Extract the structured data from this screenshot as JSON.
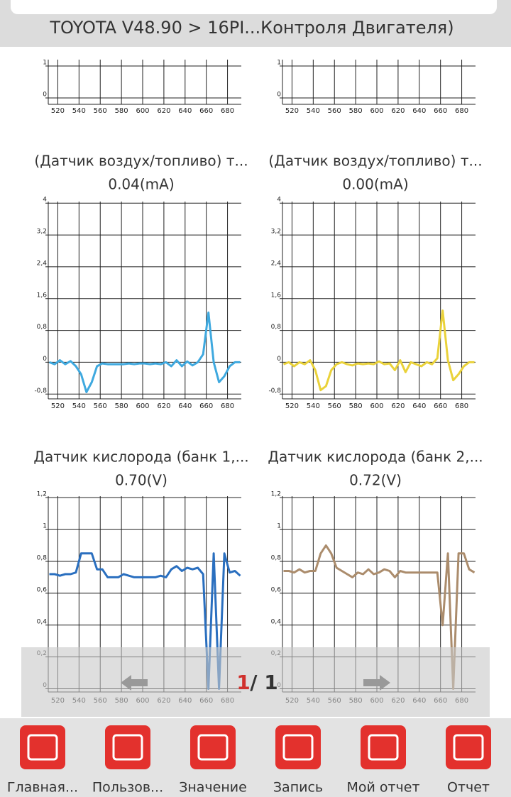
{
  "header": {
    "title": "TOYOTA V48.90 > 16PI...Контроля Двигателя)"
  },
  "charts": [
    {
      "type": "line",
      "x": [],
      "series": [],
      "xlim": [
        511,
        693
      ],
      "ylim": [
        -0.2,
        1.2
      ],
      "xticks": [
        520,
        540,
        560,
        580,
        600,
        620,
        640,
        660,
        680
      ],
      "yticks": [
        0,
        1
      ]
    },
    {
      "type": "line",
      "x": [],
      "series": [],
      "xlim": [
        511,
        693
      ],
      "ylim": [
        -0.2,
        1.2
      ],
      "xticks": [
        520,
        540,
        560,
        580,
        600,
        620,
        640,
        660,
        680
      ],
      "yticks": [
        0,
        1
      ]
    },
    {
      "type": "line",
      "title": "(Датчик воздух/топливо) т...",
      "value_text": "0.04(mA)",
      "x": [
        512,
        517,
        522,
        527,
        532,
        537,
        542,
        547,
        552,
        557,
        562,
        567,
        572,
        577,
        582,
        587,
        592,
        597,
        602,
        607,
        612,
        617,
        622,
        627,
        632,
        637,
        642,
        647,
        652,
        657,
        662,
        667,
        672,
        677,
        682,
        687,
        692
      ],
      "series": [
        {
          "color": "#3fa9df",
          "values": [
            0,
            -0.05,
            0.05,
            -0.05,
            0.03,
            -0.1,
            -0.3,
            -0.75,
            -0.5,
            -0.1,
            -0.03,
            -0.05,
            -0.05,
            -0.05,
            -0.05,
            -0.03,
            -0.05,
            -0.03,
            -0.03,
            -0.05,
            -0.03,
            -0.05,
            0,
            -0.1,
            0.05,
            -0.1,
            0.02,
            -0.08,
            0,
            0.2,
            1.25,
            0,
            -0.5,
            -0.35,
            -0.1,
            0,
            0
          ]
        }
      ],
      "xlim": [
        511,
        693
      ],
      "ylim": [
        -0.92,
        4.04
      ],
      "xticks": [
        520,
        540,
        560,
        580,
        600,
        620,
        640,
        660,
        680
      ],
      "yticks": [
        {
          "value": -0.8,
          "label": "-0,8"
        },
        0,
        {
          "value": 0.8,
          "label": "0,8"
        },
        {
          "value": 1.6,
          "label": "1,6"
        },
        {
          "value": 2.4,
          "label": "2,4"
        },
        {
          "value": 3.2,
          "label": "3,2"
        },
        4
      ]
    },
    {
      "type": "line",
      "title": "(Датчик воздух/топливо) т...",
      "value_text": "0.00(mA)",
      "x": [
        512,
        517,
        522,
        527,
        532,
        537,
        542,
        547,
        552,
        557,
        562,
        567,
        572,
        577,
        582,
        587,
        592,
        597,
        602,
        607,
        612,
        617,
        622,
        627,
        632,
        637,
        642,
        647,
        652,
        657,
        662,
        667,
        672,
        677,
        682,
        687,
        692
      ],
      "series": [
        {
          "color": "#ead23a",
          "values": [
            -0.05,
            0,
            -0.1,
            0,
            -0.05,
            0.05,
            -0.2,
            -0.7,
            -0.6,
            -0.2,
            -0.05,
            0,
            -0.05,
            -0.08,
            -0.03,
            -0.05,
            -0.03,
            -0.05,
            0.02,
            -0.05,
            -0.03,
            -0.2,
            0.05,
            -0.25,
            0,
            -0.05,
            -0.1,
            0,
            -0.05,
            0.1,
            1.3,
            0.05,
            -0.45,
            -0.3,
            -0.1,
            0,
            0
          ]
        }
      ],
      "xlim": [
        511,
        693
      ],
      "ylim": [
        -0.92,
        4.04
      ],
      "xticks": [
        520,
        540,
        560,
        580,
        600,
        620,
        640,
        660,
        680
      ],
      "yticks": [
        {
          "value": -0.8,
          "label": "-0,8"
        },
        0,
        {
          "value": 0.8,
          "label": "0,8"
        },
        {
          "value": 1.6,
          "label": "1,6"
        },
        {
          "value": 2.4,
          "label": "2,4"
        },
        {
          "value": 3.2,
          "label": "3,2"
        },
        4
      ]
    },
    {
      "type": "line",
      "title": "Датчик кислорода (банк 1,...",
      "value_text": "0.70(V)",
      "x": [
        512,
        517,
        522,
        527,
        532,
        537,
        542,
        547,
        552,
        557,
        562,
        567,
        572,
        577,
        582,
        587,
        592,
        597,
        602,
        607,
        612,
        617,
        622,
        627,
        632,
        637,
        642,
        647,
        652,
        657,
        662,
        667,
        672,
        677,
        682,
        687,
        692
      ],
      "series": [
        {
          "color": "#2a6fbf",
          "values": [
            0.72,
            0.72,
            0.71,
            0.72,
            0.72,
            0.73,
            0.85,
            0.85,
            0.85,
            0.75,
            0.75,
            0.7,
            0.7,
            0.7,
            0.72,
            0.71,
            0.7,
            0.7,
            0.7,
            0.7,
            0.7,
            0.71,
            0.7,
            0.75,
            0.77,
            0.74,
            0.76,
            0.75,
            0.76,
            0.72,
            0,
            0.85,
            0,
            0.85,
            0.73,
            0.74,
            0.71
          ]
        }
      ],
      "xlim": [
        511,
        693
      ],
      "ylim": [
        -0.02,
        1.21
      ],
      "xticks": [
        520,
        540,
        560,
        580,
        600,
        620,
        640,
        660,
        680
      ],
      "yticks": [
        0,
        {
          "value": 0.2,
          "label": "0,2"
        },
        {
          "value": 0.4,
          "label": "0,4"
        },
        {
          "value": 0.6,
          "label": "0,6"
        },
        {
          "value": 0.8,
          "label": "0,8"
        },
        1,
        {
          "value": 1.2,
          "label": "1,2"
        }
      ]
    },
    {
      "type": "line",
      "title": "Датчик кислорода (банк 2,...",
      "value_text": "0.72(V)",
      "x": [
        512,
        517,
        522,
        527,
        532,
        537,
        542,
        547,
        552,
        557,
        562,
        567,
        572,
        577,
        582,
        587,
        592,
        597,
        602,
        607,
        612,
        617,
        622,
        627,
        632,
        637,
        642,
        647,
        652,
        657,
        662,
        667,
        672,
        677,
        682,
        687,
        692
      ],
      "series": [
        {
          "color": "#ab8c6c",
          "values": [
            0.74,
            0.74,
            0.73,
            0.75,
            0.73,
            0.74,
            0.74,
            0.85,
            0.9,
            0.85,
            0.76,
            0.74,
            0.72,
            0.7,
            0.73,
            0.72,
            0.75,
            0.72,
            0.73,
            0.75,
            0.74,
            0.7,
            0.74,
            0.73,
            0.73,
            0.73,
            0.73,
            0.73,
            0.73,
            0.73,
            0.4,
            0.85,
            0,
            0.85,
            0.85,
            0.75,
            0.73
          ]
        }
      ],
      "xlim": [
        511,
        693
      ],
      "ylim": [
        -0.02,
        1.21
      ],
      "xticks": [
        520,
        540,
        560,
        580,
        600,
        620,
        640,
        660,
        680
      ],
      "yticks": [
        0,
        {
          "value": 0.2,
          "label": "0,2"
        },
        {
          "value": 0.4,
          "label": "0,4"
        },
        {
          "value": 0.6,
          "label": "0,6"
        },
        {
          "value": 0.8,
          "label": "0,8"
        },
        1,
        {
          "value": 1.2,
          "label": "1,2"
        }
      ]
    }
  ],
  "pager": {
    "current": "1",
    "rest": "/ 1"
  },
  "nav": [
    "Главная...",
    "Пользов...",
    "Значение",
    "Запись",
    "Мой отчет",
    "Отчет"
  ]
}
